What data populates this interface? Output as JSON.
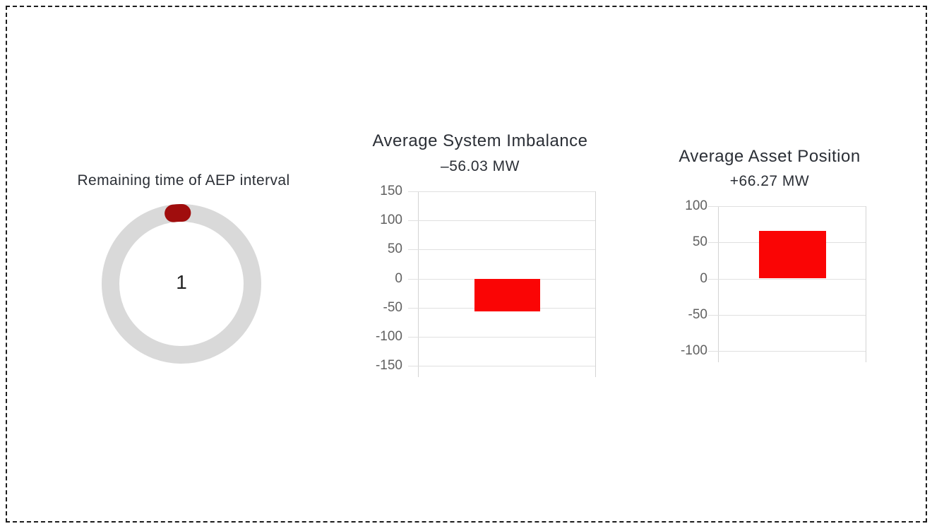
{
  "page": {
    "background": "#ffffff",
    "border_color": "#1c1c1c"
  },
  "colors": {
    "bar_red": "#fa0505",
    "gauge_knob_dark_red": "#a00d0d",
    "gauge_ring_gray": "#d9d9d9",
    "gridline_gray": "#e0e0e0",
    "tick_label_gray": "#616161",
    "title_dark": "#2b2f36"
  },
  "chart_data": [
    {
      "type": "gauge",
      "title": "Remaining time of AEP interval",
      "value": 1,
      "value_label": "1",
      "ring_color": "#d9d9d9",
      "knob_color": "#a00d0d",
      "knob_position": "top"
    },
    {
      "type": "bar",
      "title": "Average System Imbalance",
      "subtitle": "–56.03 MW",
      "categories": [
        ""
      ],
      "values": [
        -56.03
      ],
      "ylim": [
        -150,
        150
      ],
      "yticks": [
        150,
        100,
        50,
        0,
        -50,
        -100,
        -150
      ],
      "bar_color": "#fa0505",
      "grid": true,
      "legend": false,
      "ylabel": "",
      "xlabel": ""
    },
    {
      "type": "bar",
      "title": "Average Asset Position",
      "subtitle": "+66.27 MW",
      "categories": [
        ""
      ],
      "values": [
        66.27
      ],
      "ylim": [
        -100,
        100
      ],
      "yticks": [
        100,
        50,
        0,
        -50,
        -100
      ],
      "bar_color": "#fa0505",
      "grid": true,
      "legend": false,
      "ylabel": "",
      "xlabel": ""
    }
  ]
}
